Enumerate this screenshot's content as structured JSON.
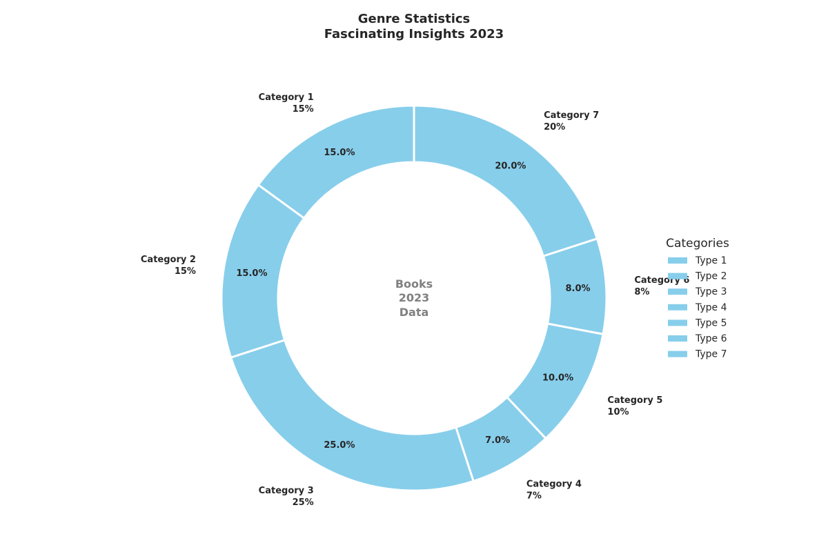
{
  "chart_data": {
    "type": "pie",
    "donut": true,
    "title_lines": [
      "Genre Statistics",
      "Fascinating Insights 2023"
    ],
    "center_text": [
      "Books",
      "2023",
      "Data"
    ],
    "start_angle_deg": 90,
    "direction": "counterclockwise",
    "slices": [
      {
        "label": "Category 1",
        "value": 15,
        "outer_label": "15%",
        "pct_label": "15.0%"
      },
      {
        "label": "Category 2",
        "value": 15,
        "outer_label": "15%",
        "pct_label": "15.0%"
      },
      {
        "label": "Category 3",
        "value": 25,
        "outer_label": "25%",
        "pct_label": "25.0%"
      },
      {
        "label": "Category 4",
        "value": 7,
        "outer_label": "7%",
        "pct_label": "7.0%"
      },
      {
        "label": "Category 5",
        "value": 10,
        "outer_label": "10%",
        "pct_label": "10.0%"
      },
      {
        "label": "Category 6",
        "value": 8,
        "outer_label": "8%",
        "pct_label": "8.0%"
      },
      {
        "label": "Category 7",
        "value": 20,
        "outer_label": "20%",
        "pct_label": "20.0%"
      }
    ],
    "slice_color": "#87CEEB",
    "edge_color": "#ffffff",
    "legend": {
      "title": "Categories",
      "placement": "right",
      "entries": [
        "Type 1",
        "Type 2",
        "Type 3",
        "Type 4",
        "Type 5",
        "Type 6",
        "Type 7"
      ]
    }
  }
}
